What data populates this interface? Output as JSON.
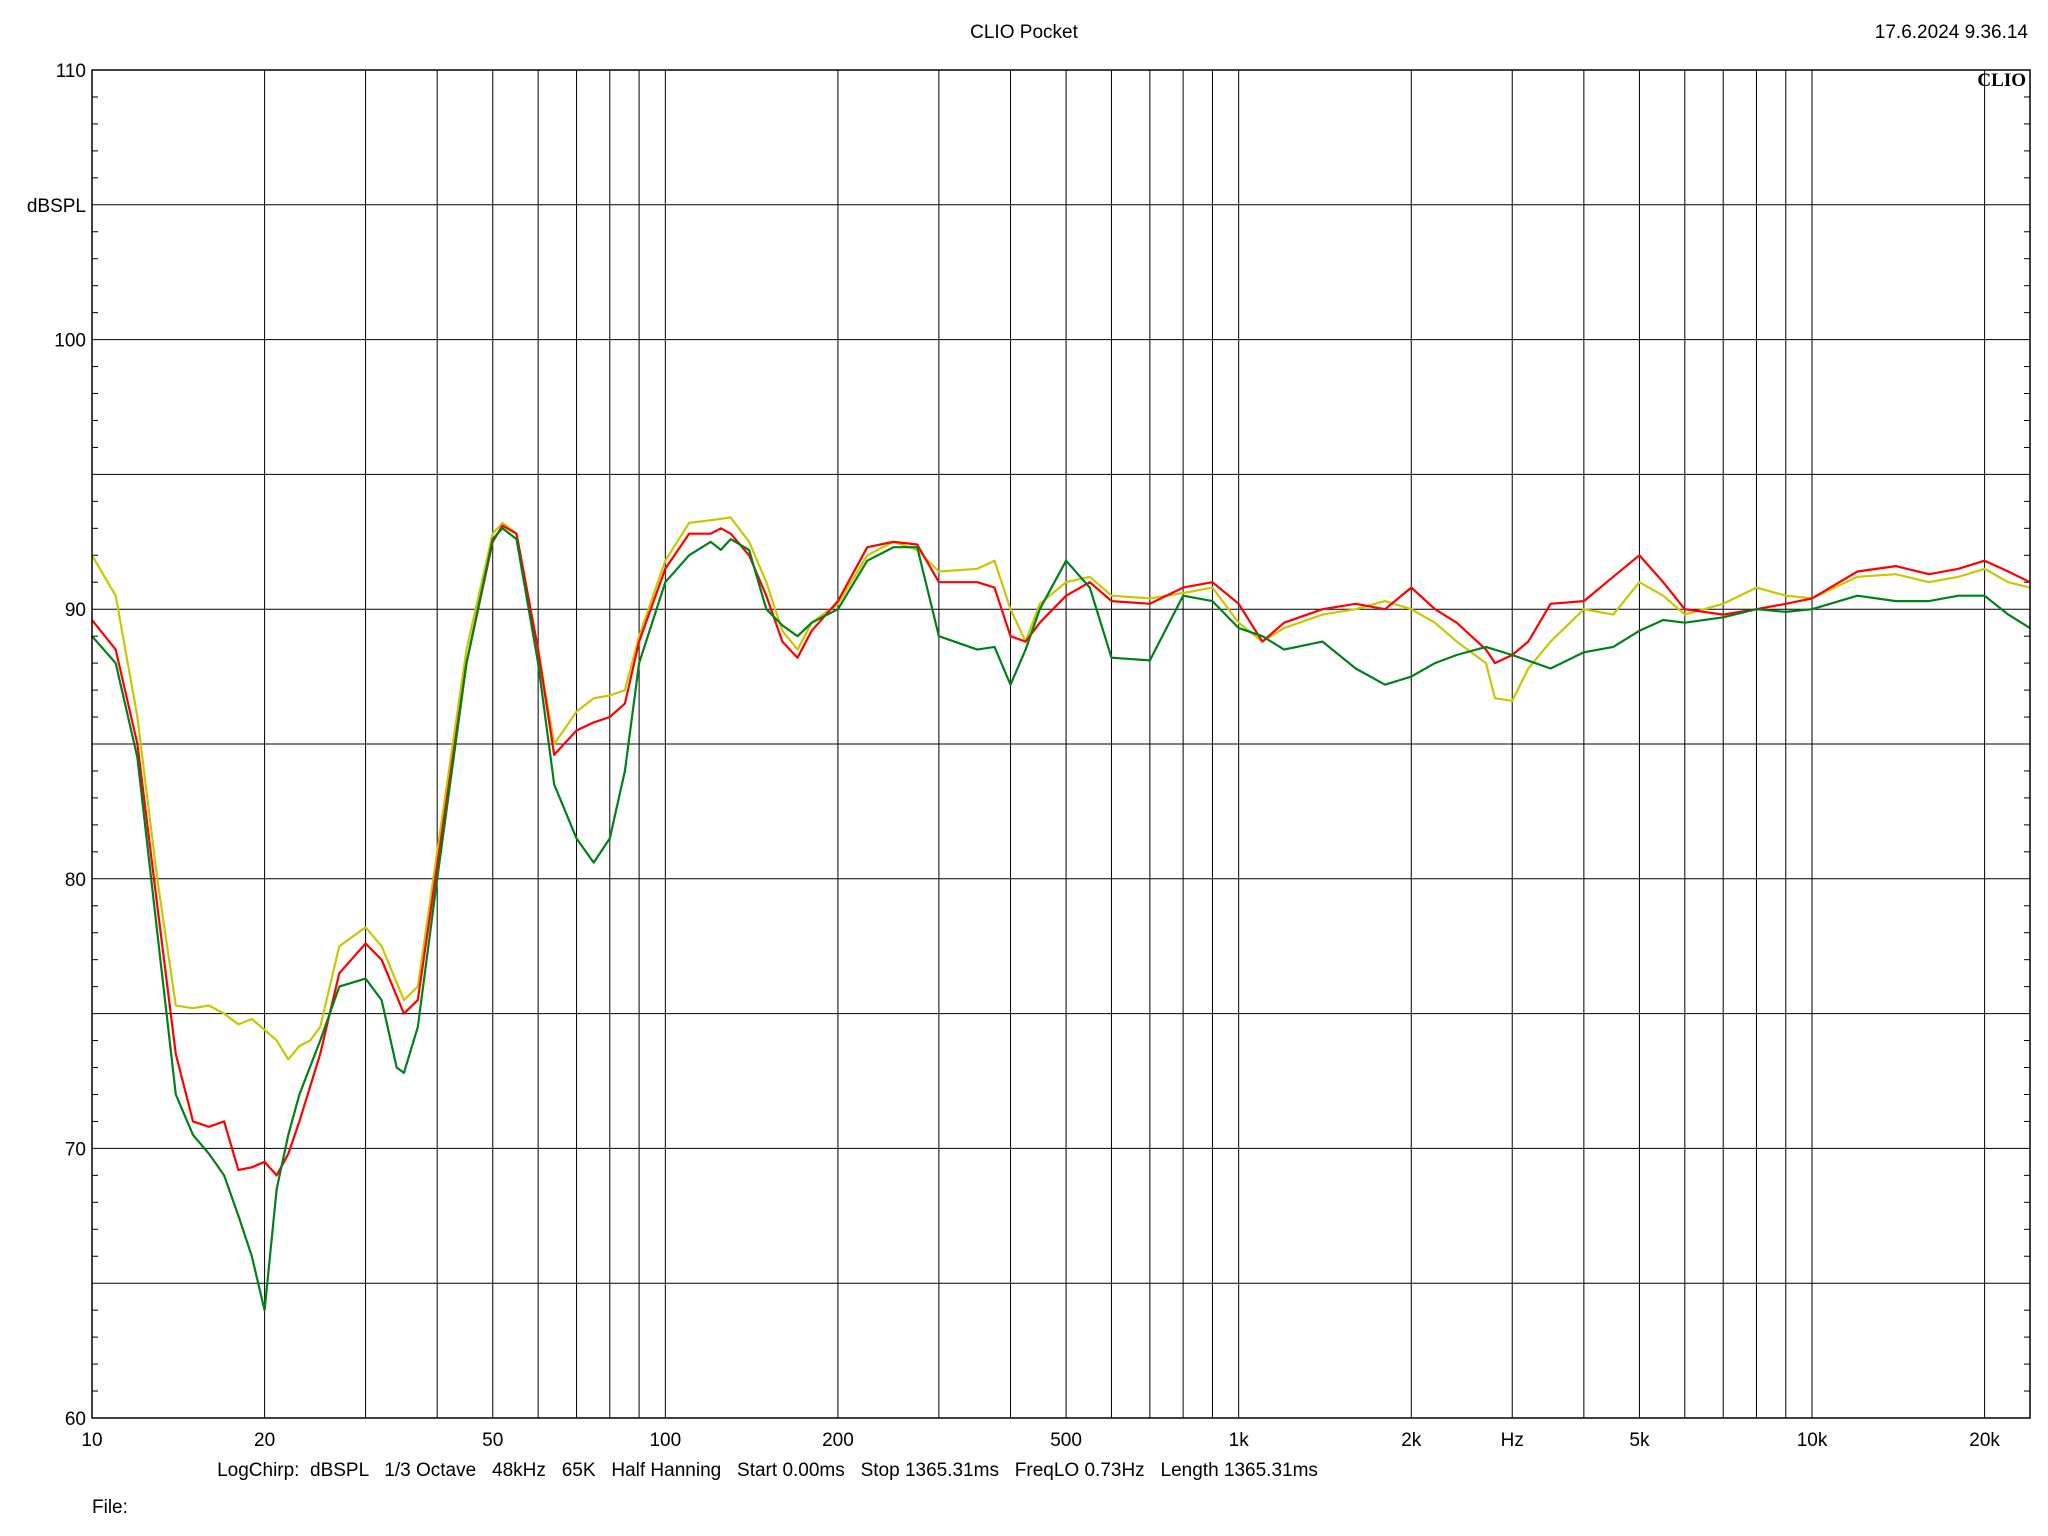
{
  "header": {
    "title": "CLIO Pocket",
    "timestamp": "17.6.2024 9.36.14"
  },
  "footer": {
    "params": "LogChirp:  dBSPL   1/3 Octave   48kHz   65K   Half Hanning   Start 0.00ms   Stop 1365.31ms   FreqLO 0.73Hz   Length 1365.31ms",
    "file_label": "File:"
  },
  "chart_data": {
    "type": "line",
    "title": "CLIO Pocket",
    "xlabel": "Hz",
    "ylabel": "dBSPL",
    "xscale": "log",
    "xlim": [
      10,
      24000
    ],
    "ylim": [
      60,
      110
    ],
    "grid": true,
    "logo": "CLIO",
    "x_ticks": [
      {
        "value": 10,
        "label": "10"
      },
      {
        "value": 20,
        "label": "20"
      },
      {
        "value": 50,
        "label": "50"
      },
      {
        "value": 100,
        "label": "100"
      },
      {
        "value": 200,
        "label": "200"
      },
      {
        "value": 500,
        "label": "500"
      },
      {
        "value": 1000,
        "label": "1k"
      },
      {
        "value": 2000,
        "label": "2k"
      },
      {
        "value": 5000,
        "label": "5k"
      },
      {
        "value": 10000,
        "label": "10k"
      },
      {
        "value": 20000,
        "label": "20k"
      }
    ],
    "x_unit_label": {
      "value": 3000,
      "label": "Hz"
    },
    "y_ticks": [
      {
        "value": 60,
        "label": "60"
      },
      {
        "value": 70,
        "label": "70"
      },
      {
        "value": 80,
        "label": "80"
      },
      {
        "value": 90,
        "label": "90"
      },
      {
        "value": 100,
        "label": "100"
      },
      {
        "value": 110,
        "label": "110"
      }
    ],
    "y_unit_label": {
      "value": 105,
      "label": "dBSPL"
    },
    "series": [
      {
        "color": "#c8c800",
        "points": [
          [
            10,
            92.0
          ],
          [
            11,
            90.5
          ],
          [
            12,
            86.0
          ],
          [
            13,
            80.0
          ],
          [
            14,
            75.3
          ],
          [
            15,
            75.2
          ],
          [
            16,
            75.3
          ],
          [
            17,
            75.0
          ],
          [
            18,
            74.6
          ],
          [
            19,
            74.8
          ],
          [
            20,
            74.4
          ],
          [
            21,
            74.0
          ],
          [
            22,
            73.3
          ],
          [
            23,
            73.8
          ],
          [
            24,
            74.0
          ],
          [
            25,
            74.5
          ],
          [
            27,
            77.5
          ],
          [
            30,
            78.2
          ],
          [
            32,
            77.5
          ],
          [
            35,
            75.5
          ],
          [
            37,
            76.0
          ],
          [
            40,
            81.0
          ],
          [
            45,
            88.5
          ],
          [
            50,
            92.8
          ],
          [
            52,
            93.2
          ],
          [
            55,
            92.8
          ],
          [
            60,
            88.5
          ],
          [
            64,
            85.0
          ],
          [
            70,
            86.2
          ],
          [
            75,
            86.7
          ],
          [
            80,
            86.8
          ],
          [
            85,
            87.0
          ],
          [
            90,
            89.0
          ],
          [
            100,
            91.8
          ],
          [
            110,
            93.2
          ],
          [
            120,
            93.3
          ],
          [
            130,
            93.4
          ],
          [
            140,
            92.5
          ],
          [
            150,
            91.0
          ],
          [
            160,
            89.2
          ],
          [
            170,
            88.5
          ],
          [
            180,
            89.5
          ],
          [
            200,
            90.2
          ],
          [
            225,
            92.0
          ],
          [
            250,
            92.5
          ],
          [
            275,
            92.2
          ],
          [
            300,
            91.4
          ],
          [
            350,
            91.5
          ],
          [
            375,
            91.8
          ],
          [
            400,
            90.0
          ],
          [
            425,
            88.8
          ],
          [
            450,
            90.2
          ],
          [
            500,
            91.0
          ],
          [
            550,
            91.2
          ],
          [
            600,
            90.5
          ],
          [
            700,
            90.4
          ],
          [
            800,
            90.6
          ],
          [
            900,
            90.8
          ],
          [
            1000,
            89.5
          ],
          [
            1100,
            88.8
          ],
          [
            1200,
            89.3
          ],
          [
            1400,
            89.8
          ],
          [
            1600,
            90.0
          ],
          [
            1800,
            90.3
          ],
          [
            2000,
            90.0
          ],
          [
            2200,
            89.5
          ],
          [
            2400,
            88.8
          ],
          [
            2700,
            88.0
          ],
          [
            2800,
            86.7
          ],
          [
            3000,
            86.6
          ],
          [
            3200,
            87.8
          ],
          [
            3500,
            88.8
          ],
          [
            4000,
            90.0
          ],
          [
            4500,
            89.8
          ],
          [
            5000,
            91.0
          ],
          [
            5500,
            90.5
          ],
          [
            6000,
            89.8
          ],
          [
            7000,
            90.2
          ],
          [
            8000,
            90.8
          ],
          [
            9000,
            90.5
          ],
          [
            10000,
            90.4
          ],
          [
            12000,
            91.2
          ],
          [
            14000,
            91.3
          ],
          [
            16000,
            91.0
          ],
          [
            18000,
            91.2
          ],
          [
            20000,
            91.5
          ],
          [
            22000,
            91.0
          ],
          [
            24000,
            90.8
          ]
        ]
      },
      {
        "color": "#ff0000",
        "points": [
          [
            10,
            89.6
          ],
          [
            11,
            88.5
          ],
          [
            12,
            85.0
          ],
          [
            13,
            79.0
          ],
          [
            14,
            73.5
          ],
          [
            15,
            71.0
          ],
          [
            16,
            70.8
          ],
          [
            17,
            71.0
          ],
          [
            18,
            69.2
          ],
          [
            19,
            69.3
          ],
          [
            20,
            69.5
          ],
          [
            21,
            69.0
          ],
          [
            22,
            69.8
          ],
          [
            23,
            71.0
          ],
          [
            25,
            73.5
          ],
          [
            27,
            76.5
          ],
          [
            30,
            77.6
          ],
          [
            32,
            77.0
          ],
          [
            35,
            75.0
          ],
          [
            37,
            75.5
          ],
          [
            40,
            80.5
          ],
          [
            45,
            88.0
          ],
          [
            50,
            92.5
          ],
          [
            52,
            93.1
          ],
          [
            55,
            92.8
          ],
          [
            60,
            88.5
          ],
          [
            64,
            84.6
          ],
          [
            70,
            85.5
          ],
          [
            75,
            85.8
          ],
          [
            80,
            86.0
          ],
          [
            85,
            86.5
          ],
          [
            90,
            88.8
          ],
          [
            100,
            91.5
          ],
          [
            110,
            92.8
          ],
          [
            120,
            92.8
          ],
          [
            125,
            93.0
          ],
          [
            130,
            92.8
          ],
          [
            140,
            92.0
          ],
          [
            150,
            90.5
          ],
          [
            160,
            88.8
          ],
          [
            170,
            88.2
          ],
          [
            180,
            89.2
          ],
          [
            200,
            90.3
          ],
          [
            225,
            92.3
          ],
          [
            250,
            92.5
          ],
          [
            275,
            92.4
          ],
          [
            300,
            91.0
          ],
          [
            350,
            91.0
          ],
          [
            375,
            90.8
          ],
          [
            400,
            89.0
          ],
          [
            425,
            88.8
          ],
          [
            450,
            89.5
          ],
          [
            500,
            90.5
          ],
          [
            550,
            91.0
          ],
          [
            600,
            90.3
          ],
          [
            700,
            90.2
          ],
          [
            800,
            90.8
          ],
          [
            900,
            91.0
          ],
          [
            1000,
            90.2
          ],
          [
            1100,
            88.8
          ],
          [
            1200,
            89.5
          ],
          [
            1400,
            90.0
          ],
          [
            1600,
            90.2
          ],
          [
            1800,
            90.0
          ],
          [
            2000,
            90.8
          ],
          [
            2200,
            90.0
          ],
          [
            2400,
            89.5
          ],
          [
            2700,
            88.5
          ],
          [
            2800,
            88.0
          ],
          [
            3000,
            88.3
          ],
          [
            3200,
            88.8
          ],
          [
            3500,
            90.2
          ],
          [
            4000,
            90.3
          ],
          [
            4500,
            91.2
          ],
          [
            5000,
            92.0
          ],
          [
            5500,
            91.0
          ],
          [
            6000,
            90.0
          ],
          [
            7000,
            89.8
          ],
          [
            8000,
            90.0
          ],
          [
            9000,
            90.2
          ],
          [
            10000,
            90.4
          ],
          [
            12000,
            91.4
          ],
          [
            14000,
            91.6
          ],
          [
            16000,
            91.3
          ],
          [
            18000,
            91.5
          ],
          [
            20000,
            91.8
          ],
          [
            22000,
            91.4
          ],
          [
            24000,
            91.0
          ]
        ]
      },
      {
        "color": "#00801a",
        "points": [
          [
            10,
            89.0
          ],
          [
            11,
            88.0
          ],
          [
            12,
            84.5
          ],
          [
            13,
            78.0
          ],
          [
            14,
            72.0
          ],
          [
            15,
            70.5
          ],
          [
            16,
            69.8
          ],
          [
            17,
            69.0
          ],
          [
            18,
            67.5
          ],
          [
            19,
            66.0
          ],
          [
            20,
            64.0
          ],
          [
            21,
            68.5
          ],
          [
            22,
            70.5
          ],
          [
            23,
            72.0
          ],
          [
            25,
            74.0
          ],
          [
            27,
            76.0
          ],
          [
            30,
            76.3
          ],
          [
            32,
            75.5
          ],
          [
            34,
            73.0
          ],
          [
            35,
            72.8
          ],
          [
            37,
            74.5
          ],
          [
            40,
            80.0
          ],
          [
            45,
            88.0
          ],
          [
            50,
            92.6
          ],
          [
            52,
            93.0
          ],
          [
            55,
            92.6
          ],
          [
            60,
            88.0
          ],
          [
            64,
            83.5
          ],
          [
            70,
            81.5
          ],
          [
            75,
            80.6
          ],
          [
            80,
            81.5
          ],
          [
            85,
            84.0
          ],
          [
            90,
            88.0
          ],
          [
            100,
            91.0
          ],
          [
            110,
            92.0
          ],
          [
            120,
            92.5
          ],
          [
            125,
            92.2
          ],
          [
            130,
            92.6
          ],
          [
            140,
            92.2
          ],
          [
            150,
            90.0
          ],
          [
            160,
            89.4
          ],
          [
            170,
            89.0
          ],
          [
            180,
            89.5
          ],
          [
            200,
            90.0
          ],
          [
            225,
            91.8
          ],
          [
            250,
            92.3
          ],
          [
            275,
            92.3
          ],
          [
            300,
            89.0
          ],
          [
            350,
            88.5
          ],
          [
            375,
            88.6
          ],
          [
            400,
            87.2
          ],
          [
            425,
            88.5
          ],
          [
            450,
            90.0
          ],
          [
            500,
            91.8
          ],
          [
            550,
            90.8
          ],
          [
            600,
            88.2
          ],
          [
            700,
            88.1
          ],
          [
            800,
            90.5
          ],
          [
            900,
            90.3
          ],
          [
            1000,
            89.3
          ],
          [
            1100,
            89.0
          ],
          [
            1200,
            88.5
          ],
          [
            1400,
            88.8
          ],
          [
            1600,
            87.8
          ],
          [
            1800,
            87.2
          ],
          [
            2000,
            87.5
          ],
          [
            2200,
            88.0
          ],
          [
            2400,
            88.3
          ],
          [
            2700,
            88.6
          ],
          [
            3000,
            88.3
          ],
          [
            3500,
            87.8
          ],
          [
            4000,
            88.4
          ],
          [
            4500,
            88.6
          ],
          [
            5000,
            89.2
          ],
          [
            5500,
            89.6
          ],
          [
            6000,
            89.5
          ],
          [
            7000,
            89.7
          ],
          [
            8000,
            90.0
          ],
          [
            9000,
            89.9
          ],
          [
            10000,
            90.0
          ],
          [
            12000,
            90.5
          ],
          [
            14000,
            90.3
          ],
          [
            16000,
            90.3
          ],
          [
            18000,
            90.5
          ],
          [
            20000,
            90.5
          ],
          [
            22000,
            89.8
          ],
          [
            24000,
            89.3
          ]
        ]
      }
    ]
  }
}
